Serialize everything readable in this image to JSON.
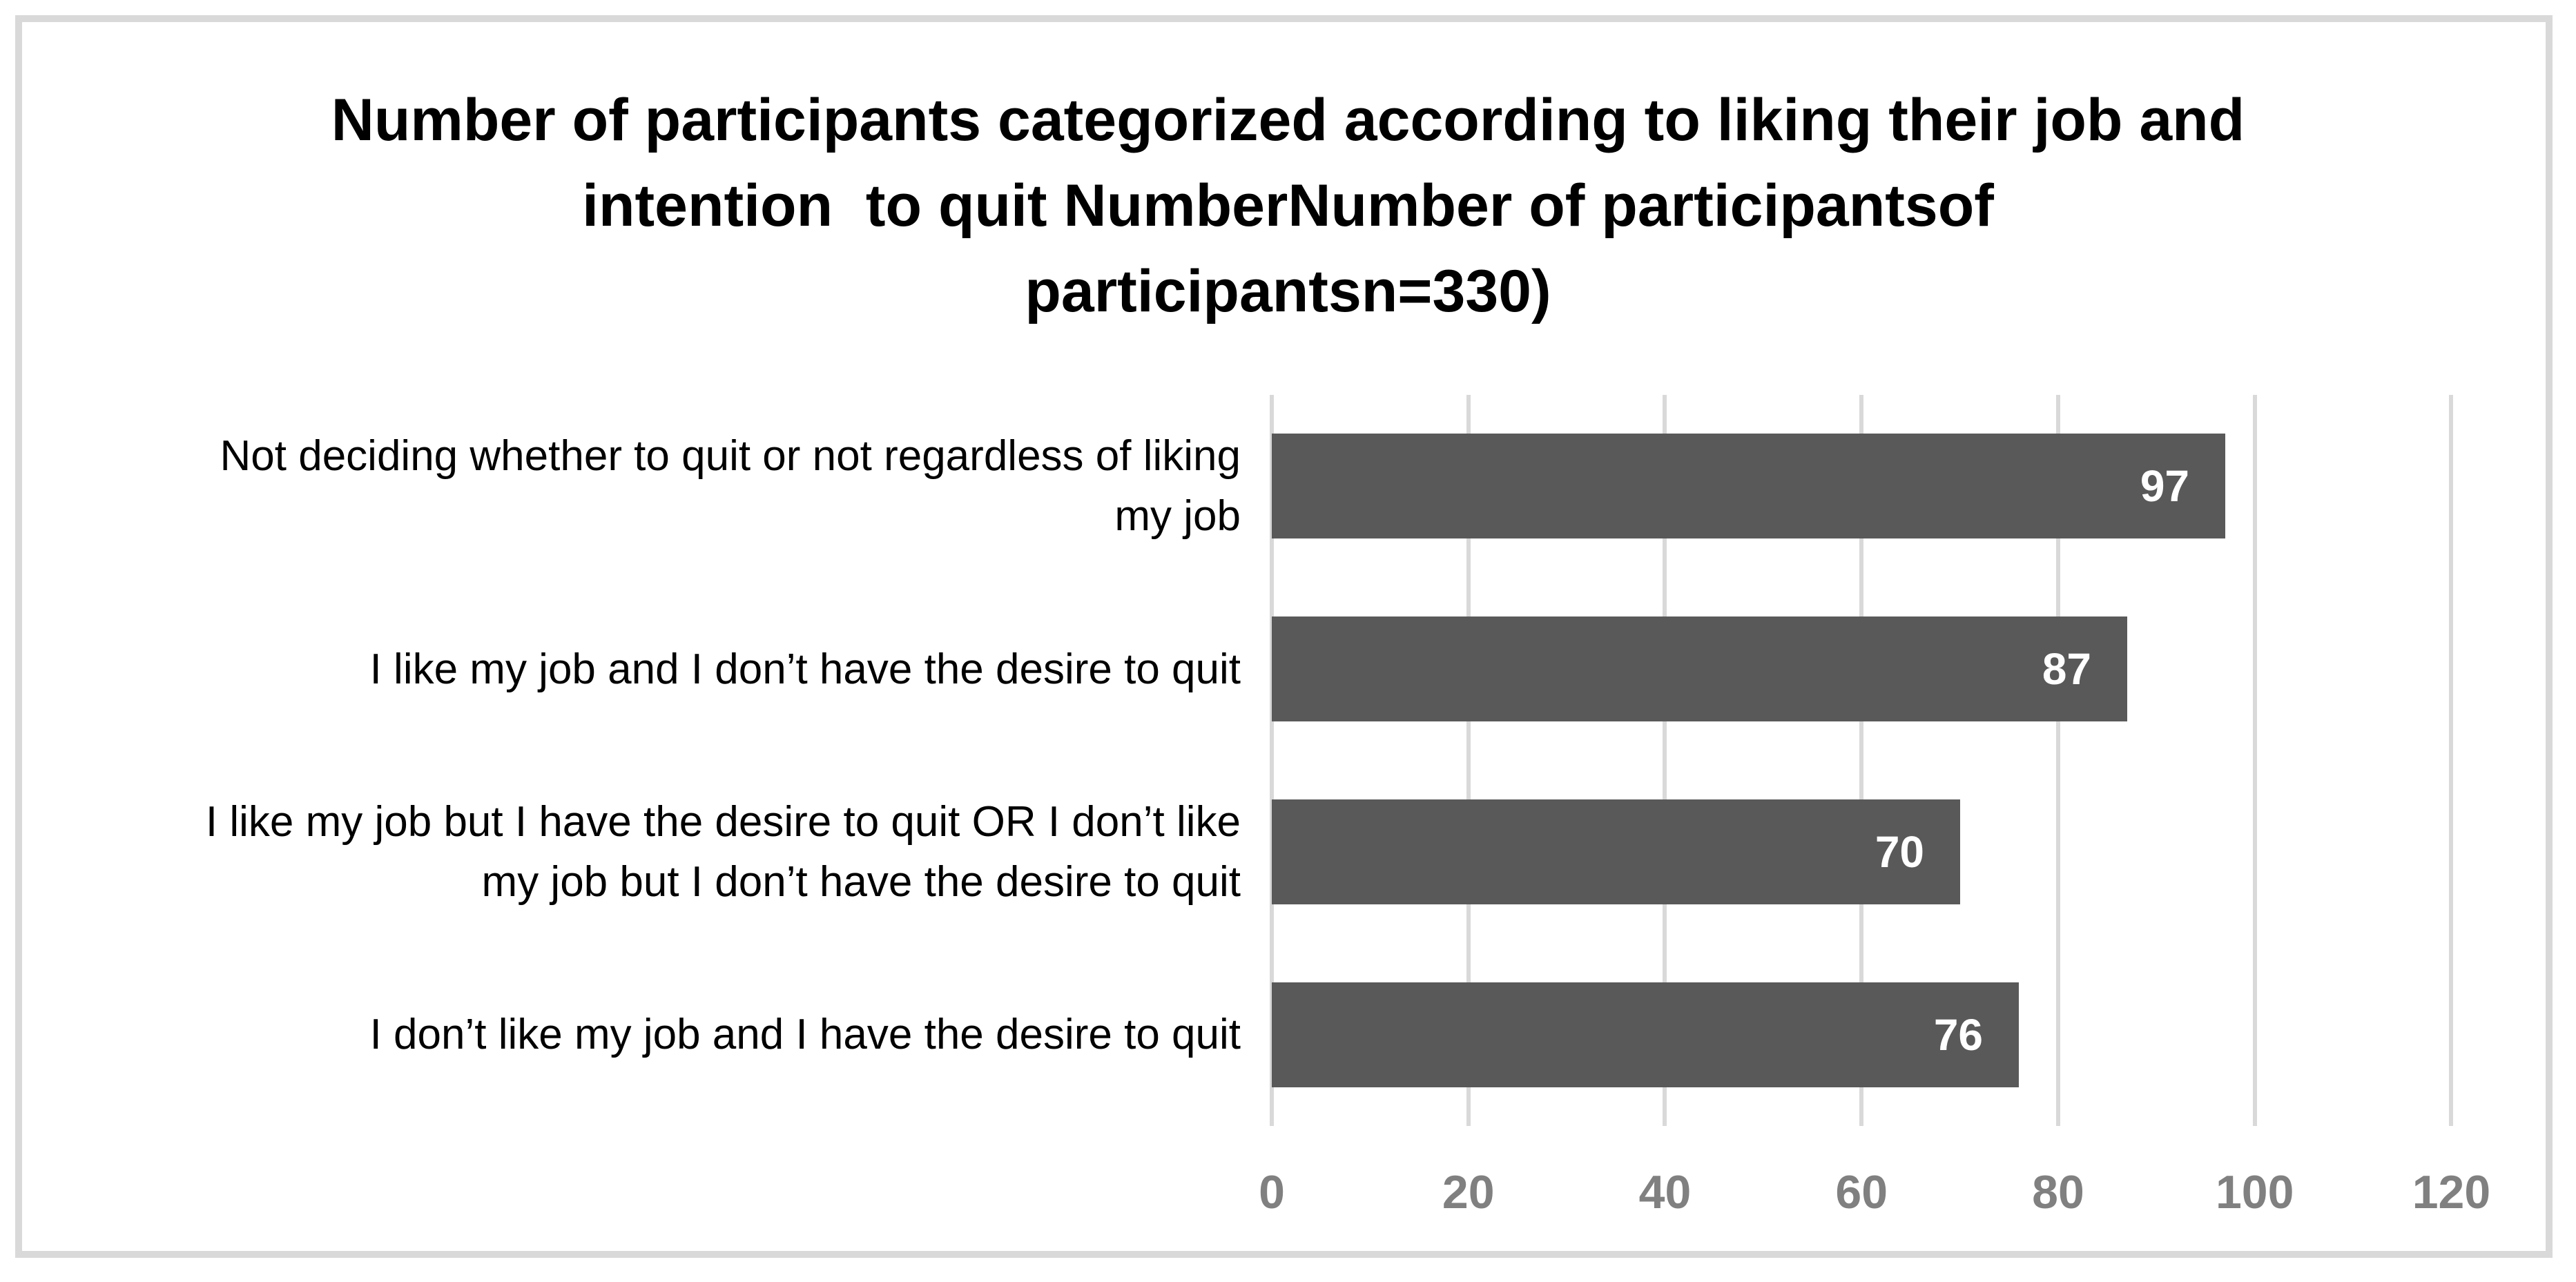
{
  "chart_data": {
    "type": "bar",
    "orientation": "horizontal",
    "title": "Number of participants categorized according to liking their job and intention  to quit NumberNumber of participantsof participantsn=330)",
    "title_lines": [
      "Number of participants categorized according to liking their job and",
      "intention  to quit NumberNumber of participantsof",
      "participantsn=330)"
    ],
    "categories": [
      "Not deciding whether to quit or not regardless of liking\nmy job",
      "I like my job and I don’t have the desire to quit",
      "I like my job but I have the desire to quit OR I don’t like\nmy job but I don’t have the desire to quit",
      "I don’t like my job and I have the desire to quit"
    ],
    "values": [
      97,
      87,
      70,
      76
    ],
    "xlabel": "",
    "ylabel": "",
    "xlim": [
      0,
      120
    ],
    "xticks": [
      0,
      20,
      40,
      60,
      80,
      100,
      120
    ],
    "grid": "vertical-gridlines-on",
    "legend": "none",
    "data_labels": "inside-end",
    "colors": {
      "bar": "#595959",
      "value_label": "#ffffff",
      "tick_label": "#808080",
      "gridline": "#d9d9d9",
      "frame_border": "#d9d9d9",
      "title_text": "#000000",
      "category_text": "#000000",
      "background": "#ffffff"
    }
  }
}
